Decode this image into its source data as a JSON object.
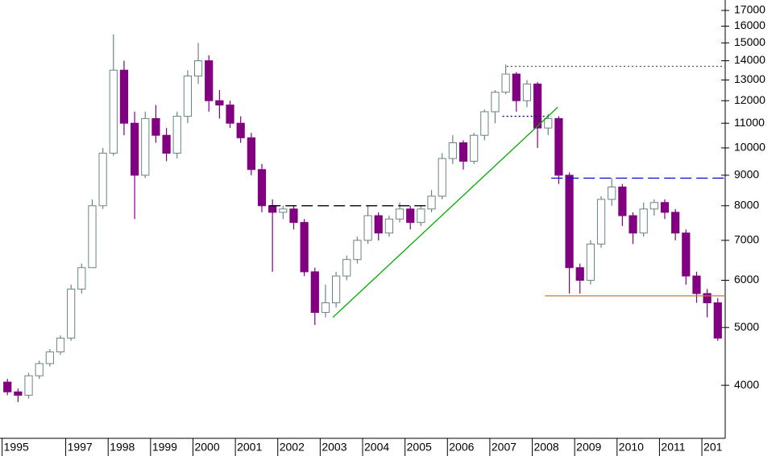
{
  "chart_data": {
    "type": "candlestick",
    "log_scale": true,
    "up_color": "#6a8484",
    "down_color": "#800080",
    "xlim": [
      1995.45,
      2012.55
    ],
    "xticks": [
      {
        "value": 1995.5,
        "label": "1995"
      },
      1997,
      1998,
      1999,
      2000,
      2001,
      2002,
      2003,
      2004,
      2005,
      2006,
      2007,
      2008,
      2009,
      2010,
      2011,
      {
        "value": 2012,
        "label": "201"
      }
    ],
    "ylim": [
      3260,
      17700
    ],
    "yticks": [
      4000,
      5000,
      6000,
      7000,
      8000,
      9000,
      10000,
      11000,
      12000,
      13000,
      14000,
      15000,
      16000,
      17000
    ],
    "x": [
      1995.625,
      1995.875,
      1996.125,
      1996.375,
      1996.625,
      1996.875,
      1997.125,
      1997.375,
      1997.625,
      1997.875,
      1998.125,
      1998.375,
      1998.625,
      1998.875,
      1999.125,
      1999.375,
      1999.625,
      1999.875,
      2000.125,
      2000.375,
      2000.625,
      2000.875,
      2001.125,
      2001.375,
      2001.625,
      2001.875,
      2002.125,
      2002.375,
      2002.625,
      2002.875,
      2003.125,
      2003.375,
      2003.625,
      2003.875,
      2004.125,
      2004.375,
      2004.625,
      2004.875,
      2005.125,
      2005.375,
      2005.625,
      2005.875,
      2006.125,
      2006.375,
      2006.625,
      2006.875,
      2007.125,
      2007.375,
      2007.625,
      2007.875,
      2008.125,
      2008.375,
      2008.625,
      2008.875,
      2009.125,
      2009.375,
      2009.625,
      2009.875,
      2010.125,
      2010.375,
      2010.625,
      2010.875,
      2011.125,
      2011.375,
      2011.625,
      2011.875,
      2012.125,
      2012.375
    ],
    "open": [
      4050,
      3900,
      3850,
      4150,
      4350,
      4550,
      4800,
      5800,
      6300,
      8000,
      9800,
      13500,
      11000,
      9000,
      11200,
      10500,
      9800,
      11300,
      13200,
      14000,
      12000,
      11800,
      11000,
      10400,
      9200,
      8000,
      7800,
      7900,
      7500,
      6200,
      5300,
      5500,
      6100,
      6500,
      7000,
      7700,
      7200,
      7600,
      7900,
      7500,
      7900,
      8300,
      9600,
      10200,
      9500,
      10500,
      11500,
      12400,
      13300,
      12000,
      12800,
      10800,
      11200,
      9000,
      6300,
      6000,
      6900,
      8200,
      8600,
      7700,
      7200,
      7900,
      8100,
      7800,
      7200,
      6100,
      5700,
      5500
    ],
    "high": [
      4100,
      3950,
      4200,
      4400,
      4600,
      4850,
      5900,
      6400,
      8200,
      10000,
      15500,
      14000,
      11500,
      11500,
      11800,
      10800,
      11500,
      13500,
      15000,
      14300,
      12500,
      12000,
      11300,
      10600,
      9400,
      8200,
      8000,
      8000,
      7600,
      6300,
      5900,
      6200,
      6600,
      7100,
      8000,
      7800,
      7700,
      8100,
      8000,
      8000,
      8500,
      9800,
      10500,
      10300,
      10600,
      11600,
      12500,
      13800,
      13400,
      13000,
      12900,
      11400,
      11300,
      9100,
      6400,
      7000,
      8300,
      8900,
      8700,
      7800,
      8100,
      8200,
      8200,
      7900,
      7300,
      6200,
      5800,
      5600
    ],
    "low": [
      3850,
      3750,
      3800,
      4100,
      4300,
      4500,
      4750,
      5700,
      6300,
      7900,
      9700,
      10500,
      7600,
      8900,
      10200,
      9500,
      9600,
      11000,
      12800,
      11500,
      11200,
      10800,
      10200,
      9000,
      7800,
      6200,
      7600,
      7300,
      6100,
      5050,
      5200,
      5400,
      6000,
      6400,
      6900,
      7000,
      7100,
      7500,
      7300,
      7400,
      7800,
      8200,
      9400,
      9200,
      9400,
      10300,
      11000,
      12300,
      11500,
      11700,
      10000,
      10500,
      8700,
      5700,
      5700,
      5900,
      6800,
      8000,
      7400,
      6900,
      7100,
      7700,
      7600,
      7000,
      5900,
      5500,
      5200,
      4750
    ],
    "close": [
      3900,
      3850,
      4150,
      4350,
      4550,
      4800,
      5800,
      6300,
      8000,
      9800,
      13500,
      11000,
      9000,
      11200,
      10500,
      9800,
      11300,
      13200,
      14000,
      12000,
      11800,
      11000,
      10400,
      9200,
      8000,
      7800,
      7900,
      7500,
      6200,
      5300,
      5500,
      6100,
      6500,
      7000,
      7700,
      7200,
      7600,
      7900,
      7500,
      7900,
      8300,
      9600,
      10200,
      9500,
      10500,
      11500,
      12400,
      13300,
      12000,
      12800,
      10800,
      11200,
      9000,
      6300,
      6000,
      6900,
      8200,
      8600,
      7700,
      7200,
      7900,
      8100,
      7800,
      7200,
      6100,
      5700,
      5500,
      4800
    ],
    "lines": [
      {
        "color": "#000000",
        "dash": "14,6",
        "x": [
          2001.8,
          2005.6
        ],
        "y": [
          8000,
          8000
        ]
      },
      {
        "color": "#0000cc",
        "dash": "14,6",
        "x": [
          2008.45,
          2012.55
        ],
        "y": [
          8900,
          8900
        ]
      },
      {
        "color": "#cc7a33",
        "dash": "none",
        "x": [
          2008.3,
          2012.55
        ],
        "y": [
          5650,
          5650
        ]
      },
      {
        "color": "#555555",
        "dash": "2,3",
        "x": [
          2007.4,
          2012.55
        ],
        "y": [
          13700,
          13700
        ]
      },
      {
        "color": "#000066",
        "dash": "2,3",
        "x": [
          2007.3,
          2008.45
        ],
        "y": [
          11300,
          11300
        ]
      },
      {
        "color": "#00aa00",
        "dash": "none",
        "x": [
          2003.3,
          2008.6
        ],
        "y": [
          5200,
          11700
        ]
      }
    ]
  }
}
